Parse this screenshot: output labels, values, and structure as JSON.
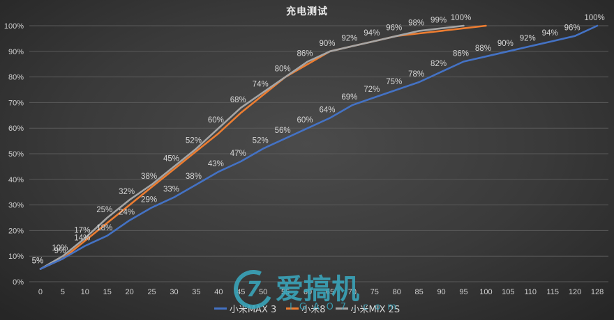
{
  "chart_data": {
    "type": "line",
    "title": "充电测试",
    "xlabel": "",
    "ylabel": "",
    "categories": [
      "0",
      "5",
      "10",
      "15",
      "20",
      "25",
      "30",
      "35",
      "40",
      "45",
      "50",
      "55",
      "60",
      "65",
      "70",
      "75",
      "80",
      "85",
      "90",
      "95",
      "100",
      "105",
      "110",
      "115",
      "120",
      "128"
    ],
    "ylim": [
      0,
      100
    ],
    "yticks": [
      "0%",
      "10%",
      "20%",
      "30%",
      "40%",
      "50%",
      "60%",
      "70%",
      "80%",
      "90%",
      "100%"
    ],
    "grid": true,
    "legend_position": "bottom",
    "series": [
      {
        "name": "小米MAX 3",
        "color": "#4472c4",
        "labels_shown": true,
        "values": [
          5,
          9,
          14,
          18,
          24,
          29,
          33,
          38,
          43,
          47,
          52,
          56,
          60,
          64,
          69,
          72,
          75,
          78,
          82,
          86,
          88,
          90,
          92,
          94,
          96,
          100
        ]
      },
      {
        "name": "小米8",
        "color": "#ed7d31",
        "labels_shown": false,
        "values": [
          5,
          9,
          16,
          23,
          30,
          37,
          44,
          51,
          58,
          66,
          73,
          80,
          85,
          90,
          92,
          94,
          96,
          97,
          98,
          99,
          100,
          null,
          null,
          null,
          null,
          null
        ]
      },
      {
        "name": "小米MIX 2S",
        "color": "#a5a5a5",
        "labels_shown": true,
        "values": [
          5,
          10,
          17,
          25,
          32,
          38,
          45,
          52,
          60,
          68,
          74,
          80,
          86,
          90,
          92,
          94,
          96,
          98,
          99,
          100,
          null,
          null,
          null,
          null,
          null,
          null
        ]
      }
    ]
  },
  "legend": {
    "items": [
      {
        "label": "小米MAX 3",
        "color": "#4472c4"
      },
      {
        "label": "小米8",
        "color": "#ed7d31"
      },
      {
        "label": "小米MIX 2S",
        "color": "#a5a5a5"
      }
    ]
  },
  "watermark": {
    "logo_glyph": "7",
    "text": "爱搞机",
    "sub": "IGAO7.com"
  }
}
